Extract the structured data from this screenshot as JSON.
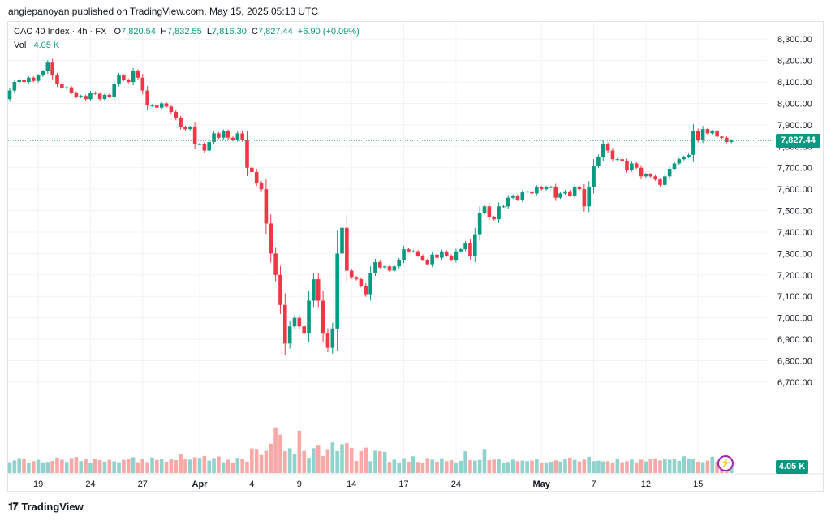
{
  "publisher_line": "angiepanoyan published on TradingView.com, May 15, 2025 05:13 UTC",
  "legend": {
    "symbol": "CAC 40 Index · 4h · FX",
    "open_label": "O",
    "open": "7,820.54",
    "high_label": "H",
    "high": "7,832.55",
    "low_label": "L",
    "low": "7,816.30",
    "close_label": "C",
    "close": "7,827.44",
    "change": "+6.90 (+0.09%)",
    "vol_label": "Vol",
    "vol": "4.05 K"
  },
  "last_price_tag": "7,827.44",
  "last_volume_tag": "4.05 K",
  "brand": {
    "name": "TradingView",
    "icon": "tradingview-logo-icon"
  },
  "colors": {
    "up": "#089981",
    "down": "#f23645",
    "vol_up": "#92d2cc",
    "vol_down": "#f7a9a7",
    "grid": "#f0f3fa",
    "accent": "#9c27b0"
  },
  "chart_data": {
    "type": "candlestick",
    "ylim": [
      6580,
      8380
    ],
    "y_ticks": [
      6700,
      6800,
      6900,
      7000,
      7100,
      7200,
      7300,
      7400,
      7500,
      7600,
      7700,
      7800,
      7900,
      8000,
      8100,
      8200,
      8300
    ],
    "y_tick_labels": [
      "6,700.00",
      "6,800.00",
      "6,900.00",
      "7,000.00",
      "7,100.00",
      "7,200.00",
      "7,300.00",
      "7,400.00",
      "7,500.00",
      "7,600.00",
      "7,700.00",
      "7,800.00",
      "7,900.00",
      "8,000.00",
      "8,100.00",
      "8,200.00",
      "8,300.00"
    ],
    "x_ticks": [
      {
        "label": "19",
        "i": 6
      },
      {
        "label": "24",
        "i": 17
      },
      {
        "label": "27",
        "i": 28
      },
      {
        "label": "Apr",
        "i": 40
      },
      {
        "label": "4",
        "i": 51
      },
      {
        "label": "9",
        "i": 61
      },
      {
        "label": "14",
        "i": 72
      },
      {
        "label": "17",
        "i": 83
      },
      {
        "label": "24",
        "i": 94
      },
      {
        "label": "May",
        "i": 112
      },
      {
        "label": "7",
        "i": 123
      },
      {
        "label": "12",
        "i": 134
      },
      {
        "label": "15",
        "i": 145
      }
    ],
    "closes": [
      8060,
      8100,
      8110,
      8100,
      8120,
      8105,
      8130,
      8150,
      8190,
      8130,
      8090,
      8070,
      8075,
      8050,
      8030,
      8035,
      8020,
      8050,
      8045,
      8020,
      8040,
      8030,
      8090,
      8130,
      8110,
      8100,
      8150,
      8120,
      8060,
      7990,
      7990,
      7980,
      8000,
      7985,
      7960,
      7930,
      7890,
      7880,
      7890,
      7810,
      7810,
      7780,
      7820,
      7860,
      7840,
      7870,
      7840,
      7830,
      7860,
      7830,
      7700,
      7680,
      7630,
      7600,
      7440,
      7300,
      7200,
      7060,
      6880,
      6960,
      7000,
      6960,
      6930,
      7080,
      7180,
      7080,
      6930,
      6860,
      6950,
      7300,
      7420,
      7220,
      7190,
      7180,
      7150,
      7110,
      7210,
      7260,
      7235,
      7240,
      7220,
      7240,
      7270,
      7320,
      7310,
      7310,
      7290,
      7270,
      7250,
      7295,
      7280,
      7310,
      7290,
      7270,
      7310,
      7320,
      7350,
      7290,
      7390,
      7490,
      7520,
      7470,
      7460,
      7520,
      7520,
      7560,
      7570,
      7550,
      7585,
      7590,
      7580,
      7610,
      7600,
      7610,
      7610,
      7560,
      7580,
      7590,
      7570,
      7610,
      7600,
      7520,
      7610,
      7710,
      7750,
      7810,
      7780,
      7740,
      7740,
      7730,
      7690,
      7720,
      7700,
      7660,
      7670,
      7660,
      7645,
      7620,
      7660,
      7695,
      7720,
      7740,
      7750,
      7760,
      7870,
      7830,
      7880,
      7860,
      7870,
      7845,
      7840,
      7820,
      7827
    ],
    "volumes": [
      4.2,
      4.9,
      5.8,
      5.4,
      4.0,
      4.6,
      5.1,
      4.1,
      4.3,
      4.7,
      6.0,
      5.2,
      4.3,
      5.8,
      6.2,
      4.6,
      5.4,
      3.9,
      5.3,
      5.0,
      4.4,
      5.1,
      4.5,
      4.2,
      5.1,
      5.3,
      6.1,
      4.2,
      5.4,
      4.2,
      6.0,
      5.1,
      5.4,
      4.4,
      5.5,
      5.0,
      7.4,
      5.4,
      5.2,
      6.1,
      5.9,
      6.6,
      4.8,
      5.8,
      6.4,
      4.2,
      5.2,
      3.9,
      5.9,
      5.3,
      4.4,
      9.5,
      9.3,
      7.0,
      8.6,
      11.3,
      17.6,
      14.8,
      8.4,
      9.6,
      7.2,
      16.3,
      8.5,
      5.9,
      9.6,
      10.9,
      6.6,
      9.2,
      11.8,
      8.5,
      11.1,
      11.5,
      9.7,
      4.7,
      8.5,
      9.8,
      4.6,
      8.6,
      8.4,
      8.2,
      4.3,
      5.2,
      4.1,
      5.8,
      4.4,
      6.5,
      4.3,
      4.0,
      5.8,
      5.2,
      4.4,
      5.7,
      4.6,
      5.0,
      4.1,
      4.7,
      8.4,
      5.0,
      4.8,
      5.1,
      9.3,
      5.0,
      5.2,
      5.3,
      4.0,
      4.3,
      5.2,
      4.6,
      4.8,
      4.6,
      4.8,
      5.3,
      3.9,
      4.1,
      4.4,
      4.9,
      4.5,
      5.3,
      6.0,
      5.1,
      4.5,
      5.2,
      6.3,
      4.6,
      4.8,
      4.5,
      4.6,
      4.1,
      5.4,
      4.2,
      4.6,
      5.2,
      4.1,
      5.2,
      4.5,
      5.6,
      5.7,
      4.9,
      5.4,
      5.2,
      5.6,
      4.7,
      6.5,
      5.7,
      5.3,
      4.4,
      4.2,
      4.8,
      6.3,
      4.5,
      4.6,
      4.0,
      4.1
    ]
  }
}
